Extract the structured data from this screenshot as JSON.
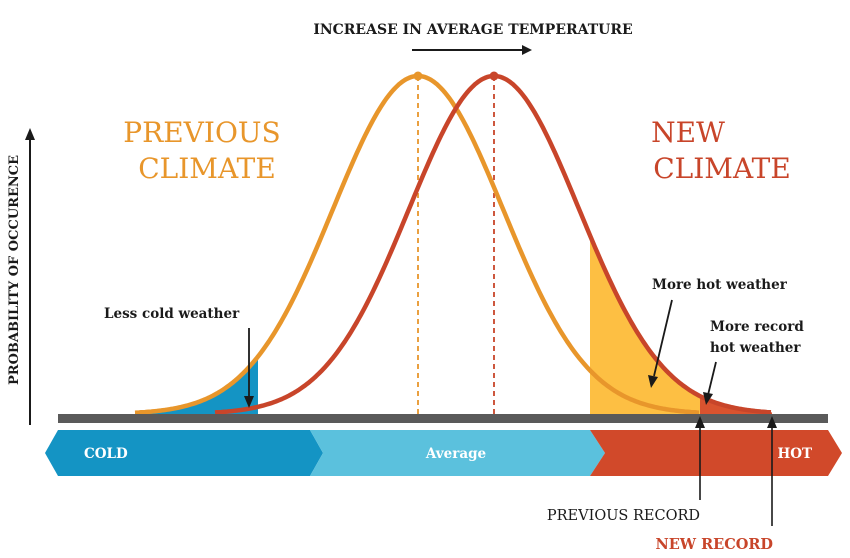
{
  "header": {
    "title": "INCREASE IN AVERAGE TEMPERATURE"
  },
  "axis": {
    "ylabel": "PROBABILITY OF OCCURENCE"
  },
  "curves": {
    "previous": {
      "label_line1": "PREVIOUS",
      "label_line2": "CLIMATE",
      "color": "#E8962B"
    },
    "new": {
      "label_line1": "NEW",
      "label_line2": "CLIMATE",
      "color": "#C8452A"
    }
  },
  "annotations": {
    "less_cold": "Less cold weather",
    "more_hot": "More hot weather",
    "more_record_line1": "More record",
    "more_record_line2": "hot weather",
    "previous_record": "PREVIOUS RECORD",
    "new_record": "NEW RECORD"
  },
  "scale": {
    "cold": {
      "label": "COLD",
      "color": "#1494C4"
    },
    "average": {
      "label": "Average",
      "color": "#5BC1DD"
    },
    "hot": {
      "label": "HOT",
      "color": "#D1492A"
    }
  },
  "colors": {
    "cold_fill": "#1494C4",
    "hot_fill": "#FDBF43",
    "record_fill": "#D9532F",
    "baseline": "#5A5A5A",
    "text": "#1A1A1A"
  }
}
